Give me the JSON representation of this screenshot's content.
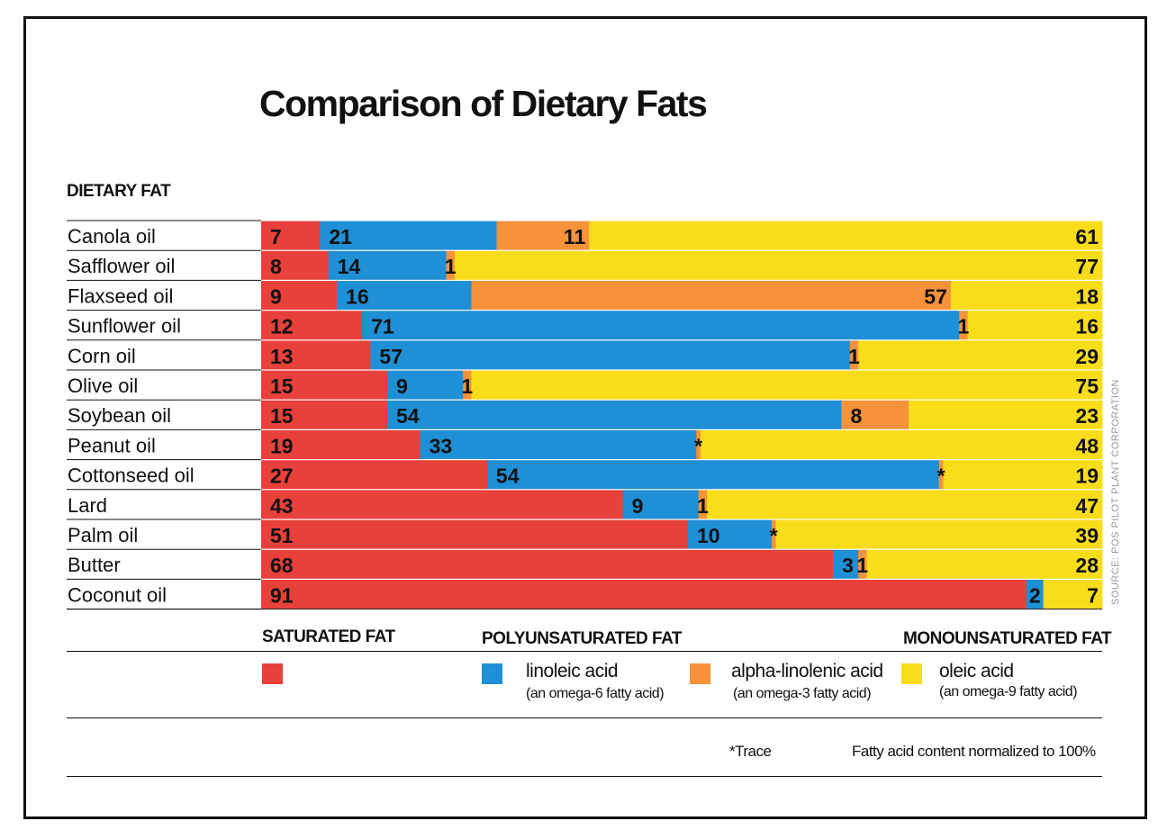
{
  "title": "Comparison of Dietary Fats",
  "column_header": "DIETARY FAT",
  "colors": {
    "saturated": "#e8403a",
    "linoleic": "#1f8fd6",
    "alpha_linolenic": "#f5923a",
    "oleic": "#f9dd1a"
  },
  "chart_data": {
    "type": "bar",
    "orientation": "horizontal",
    "stacked": true,
    "normalized_to": 100,
    "title": "Comparison of Dietary Fats",
    "categories": [
      "Canola oil",
      "Safflower oil",
      "Flaxseed oil",
      "Sunflower oil",
      "Corn oil",
      "Olive oil",
      "Soybean oil",
      "Peanut oil",
      "Cottonseed oil",
      "Lard",
      "Palm oil",
      "Butter",
      "Coconut oil"
    ],
    "series": [
      {
        "key": "saturated",
        "values": [
          7,
          8,
          9,
          12,
          13,
          15,
          15,
          19,
          27,
          43,
          51,
          68,
          91
        ]
      },
      {
        "key": "linoleic",
        "values": [
          21,
          14,
          16,
          71,
          57,
          9,
          54,
          33,
          54,
          9,
          10,
          3,
          2
        ]
      },
      {
        "key": "alpha_linolenic",
        "values": [
          11,
          1,
          57,
          1,
          1,
          1,
          8,
          0.5,
          0.5,
          1,
          0.5,
          1,
          0
        ]
      },
      {
        "key": "oleic",
        "values": [
          61,
          77,
          18,
          16,
          29,
          75,
          23,
          48,
          19,
          47,
          39,
          28,
          7
        ]
      }
    ],
    "value_labels": [
      [
        "7",
        "21",
        "11",
        "61"
      ],
      [
        "8",
        "14",
        "1",
        "77"
      ],
      [
        "9",
        "16",
        "57",
        "18"
      ],
      [
        "12",
        "71",
        "1",
        "16"
      ],
      [
        "13",
        "57",
        "1",
        "29"
      ],
      [
        "15",
        "9",
        "1",
        "75"
      ],
      [
        "15",
        "54",
        "8",
        "23"
      ],
      [
        "19",
        "33",
        "*",
        "48"
      ],
      [
        "27",
        "54",
        "*",
        "19"
      ],
      [
        "43",
        "9",
        "1",
        "47"
      ],
      [
        "51",
        "10",
        "*",
        "39"
      ],
      [
        "68",
        "3",
        "1",
        "28"
      ],
      [
        "91",
        "2",
        "",
        "7"
      ]
    ]
  },
  "legend": {
    "saturated": {
      "group": "SATURATED FAT"
    },
    "polyunsaturated": {
      "group": "POLYUNSATURATED FAT",
      "linoleic": {
        "name": "linoleic acid",
        "note": "(an omega-6 fatty acid)"
      },
      "alpha_linolenic": {
        "name": "alpha-linolenic acid",
        "note": "(an omega-3 fatty acid)"
      }
    },
    "monounsaturated": {
      "group": "MONOUNSATURATED FAT",
      "oleic": {
        "name": "oleic acid",
        "note": "(an omega-9 fatty acid)"
      }
    }
  },
  "footnotes": {
    "trace": "*Trace",
    "normalized": "Fatty acid content normalized to 100%"
  },
  "source": "SOURCE: POS PILOT PLANT CORPORATION"
}
